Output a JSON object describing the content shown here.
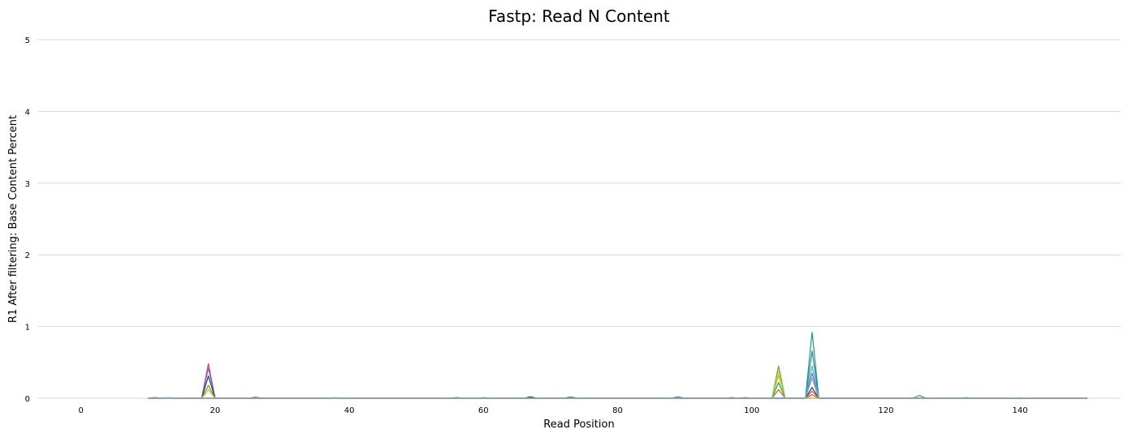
{
  "chart_data": {
    "type": "line",
    "title": "Fastp: Read N Content",
    "xlabel": "Read Position",
    "ylabel": "R1 After filtering: Base Content Percent",
    "xlim": [
      -6.5,
      155
    ],
    "ylim": [
      0,
      5
    ],
    "xticks": [
      "0",
      "20",
      "40",
      "60",
      "80",
      "100",
      "120",
      "140"
    ],
    "yticks": [
      "0",
      "1",
      "2",
      "3",
      "4",
      "5"
    ],
    "grid": "horizontal",
    "legend": "none",
    "series": [
      {
        "color": "#e7298a",
        "points": [
          [
            10,
            0
          ],
          [
            18,
            0
          ],
          [
            19,
            0.48
          ],
          [
            20,
            0
          ],
          [
            60,
            0
          ],
          [
            108,
            0
          ],
          [
            109,
            0.05
          ],
          [
            110,
            0
          ],
          [
            150,
            0
          ]
        ]
      },
      {
        "color": "#7570b3",
        "points": [
          [
            10,
            0
          ],
          [
            18,
            0
          ],
          [
            19,
            0.42
          ],
          [
            20,
            0
          ],
          [
            96,
            0
          ],
          [
            97,
            0.01
          ],
          [
            98,
            0
          ],
          [
            108,
            0
          ],
          [
            109,
            0.35
          ],
          [
            110,
            0
          ],
          [
            150,
            0
          ]
        ]
      },
      {
        "color": "#1f3c88",
        "points": [
          [
            10,
            0
          ],
          [
            18,
            0
          ],
          [
            19,
            0.31
          ],
          [
            20,
            0
          ],
          [
            66,
            0
          ],
          [
            67,
            0.02
          ],
          [
            68,
            0
          ],
          [
            108,
            0
          ],
          [
            109,
            0.15
          ],
          [
            110,
            0
          ],
          [
            150,
            0
          ]
        ]
      },
      {
        "color": "#66a61e",
        "points": [
          [
            10,
            0
          ],
          [
            18,
            0
          ],
          [
            19,
            0.18
          ],
          [
            20,
            0
          ],
          [
            103,
            0
          ],
          [
            104,
            0.45
          ],
          [
            105,
            0
          ],
          [
            150,
            0
          ]
        ]
      },
      {
        "color": "#e6ab02",
        "points": [
          [
            10,
            0
          ],
          [
            18,
            0
          ],
          [
            19,
            0.12
          ],
          [
            20,
            0
          ],
          [
            25,
            0
          ],
          [
            26,
            0.02
          ],
          [
            27,
            0
          ],
          [
            103,
            0
          ],
          [
            104,
            0.32
          ],
          [
            105,
            0
          ],
          [
            150,
            0
          ]
        ]
      },
      {
        "color": "#1b9e77",
        "points": [
          [
            10,
            0
          ],
          [
            72,
            0
          ],
          [
            73,
            0.02
          ],
          [
            74,
            0
          ],
          [
            103,
            0
          ],
          [
            104,
            0.22
          ],
          [
            105,
            0
          ],
          [
            108,
            0
          ],
          [
            109,
            0.92
          ],
          [
            110,
            0
          ],
          [
            124,
            0
          ],
          [
            125,
            0.04
          ],
          [
            126,
            0
          ],
          [
            150,
            0
          ]
        ]
      },
      {
        "color": "#2c7fb8",
        "points": [
          [
            10,
            0
          ],
          [
            11,
            0.01
          ],
          [
            12,
            0
          ],
          [
            55,
            0
          ],
          [
            56,
            0.01
          ],
          [
            57,
            0
          ],
          [
            88,
            0
          ],
          [
            89,
            0.02
          ],
          [
            90,
            0
          ],
          [
            108,
            0
          ],
          [
            109,
            0.66
          ],
          [
            110,
            0
          ],
          [
            150,
            0
          ]
        ]
      },
      {
        "color": "#41b6c4",
        "points": [
          [
            10,
            0
          ],
          [
            59,
            0
          ],
          [
            60,
            0.01
          ],
          [
            61,
            0
          ],
          [
            108,
            0
          ],
          [
            109,
            0.45
          ],
          [
            110,
            0
          ],
          [
            131,
            0
          ],
          [
            132,
            0.01
          ],
          [
            133,
            0
          ],
          [
            150,
            0
          ]
        ]
      },
      {
        "color": "#d95f02",
        "points": [
          [
            10,
            0
          ],
          [
            25,
            0
          ],
          [
            26,
            0.01
          ],
          [
            27,
            0
          ],
          [
            98,
            0
          ],
          [
            99,
            0.01
          ],
          [
            100,
            0
          ],
          [
            103,
            0
          ],
          [
            104,
            0.12
          ],
          [
            105,
            0
          ],
          [
            108,
            0
          ],
          [
            109,
            0.1
          ],
          [
            110,
            0
          ],
          [
            150,
            0
          ]
        ]
      },
      {
        "color": "#a6d854",
        "points": [
          [
            10,
            0
          ],
          [
            103,
            0
          ],
          [
            104,
            0.38
          ],
          [
            105,
            0
          ],
          [
            139,
            0
          ],
          [
            140,
            0.01
          ],
          [
            141,
            0
          ],
          [
            150,
            0
          ]
        ]
      },
      {
        "color": "#8da0cb",
        "points": [
          [
            10,
            0
          ],
          [
            12,
            0
          ],
          [
            13,
            0.01
          ],
          [
            14,
            0
          ],
          [
            37,
            0
          ],
          [
            38,
            0.01
          ],
          [
            39,
            0
          ],
          [
            108,
            0
          ],
          [
            109,
            0.28
          ],
          [
            110,
            0
          ],
          [
            150,
            0
          ]
        ]
      }
    ]
  }
}
